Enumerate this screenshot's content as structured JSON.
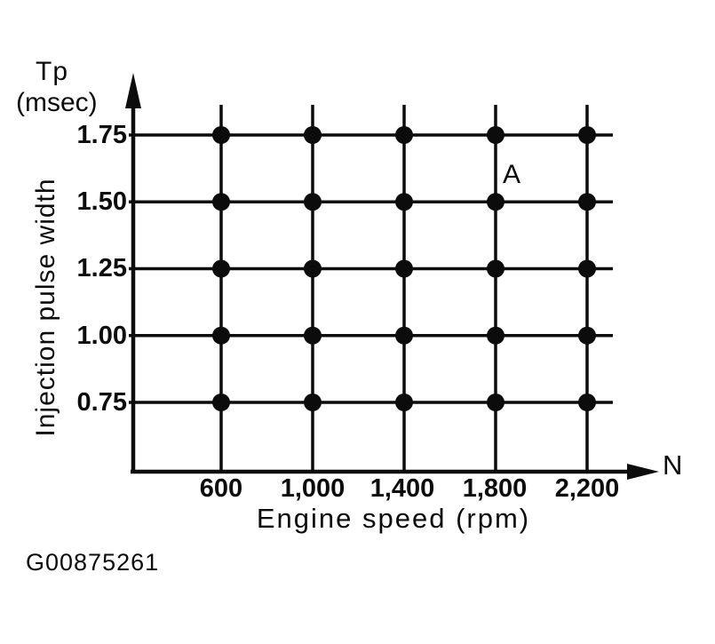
{
  "figure": {
    "code": "G00875261"
  },
  "colors": {
    "ink": "#0c0c0c",
    "background": "#ffffff"
  },
  "chart_data": {
    "type": "scatter",
    "title": "",
    "xlabel": "Engine speed (rpm)",
    "x_axis_symbol": "N",
    "ylabel_axis_line1": "Tp",
    "ylabel_axis_line2": "(msec)",
    "ylabel_side": "Injection pulse width",
    "x": [
      600,
      1000,
      1400,
      1800,
      2200
    ],
    "y": [
      1.75,
      1.5,
      1.25,
      1.0,
      0.75
    ],
    "xtick_labels": [
      "600",
      "1,000",
      "1,400",
      "1,800",
      "2,200"
    ],
    "ytick_labels": [
      "1.75",
      "1.50",
      "1.25",
      "1.00",
      "0.75"
    ],
    "xlim": [
      200,
      2500
    ],
    "ylim": [
      0.55,
      2.0
    ],
    "grid": true,
    "legend": false,
    "points": [
      [
        600,
        1.75
      ],
      [
        1000,
        1.75
      ],
      [
        1400,
        1.75
      ],
      [
        1800,
        1.75
      ],
      [
        2200,
        1.75
      ],
      [
        600,
        1.5
      ],
      [
        1000,
        1.5
      ],
      [
        1400,
        1.5
      ],
      [
        1800,
        1.5
      ],
      [
        2200,
        1.5
      ],
      [
        600,
        1.25
      ],
      [
        1000,
        1.25
      ],
      [
        1400,
        1.25
      ],
      [
        1800,
        1.25
      ],
      [
        2200,
        1.25
      ],
      [
        600,
        1.0
      ],
      [
        1000,
        1.0
      ],
      [
        1400,
        1.0
      ],
      [
        1800,
        1.0
      ],
      [
        2200,
        1.0
      ],
      [
        600,
        0.75
      ],
      [
        1000,
        0.75
      ],
      [
        1400,
        0.75
      ],
      [
        1800,
        0.75
      ],
      [
        2200,
        0.75
      ]
    ],
    "annotations": [
      {
        "text": "A",
        "near_point": [
          1800,
          1.5
        ]
      }
    ]
  }
}
